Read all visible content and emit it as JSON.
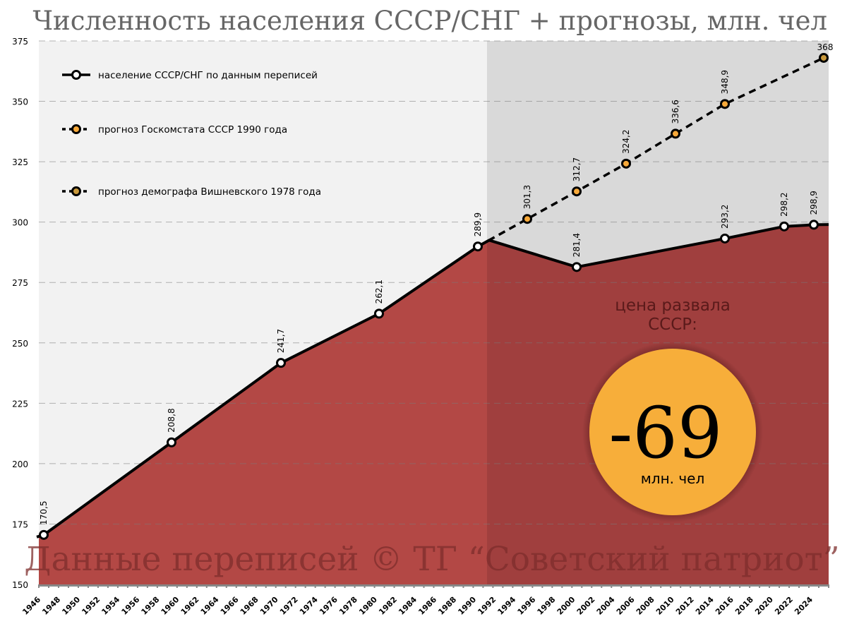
{
  "chart_data": {
    "type": "line",
    "title": "Численность населения СССР/СНГ + прогнозы, млн. чел",
    "xlabel": "",
    "ylabel": "",
    "ylim": [
      150,
      375
    ],
    "yticks": [
      150,
      175,
      200,
      225,
      250,
      275,
      300,
      325,
      350,
      375
    ],
    "xticks": [
      "1946",
      "1948",
      "1950",
      "1952",
      "1954",
      "1956",
      "1958",
      "1960",
      "1962",
      "1964",
      "1966",
      "1968",
      "1970",
      "1972",
      "1974",
      "1976",
      "1978",
      "1980",
      "1982",
      "1984",
      "1986",
      "1988",
      "1990",
      "1992",
      "1994",
      "1996",
      "1998",
      "2000",
      "2002",
      "2004",
      "2006",
      "2008",
      "2010",
      "2012",
      "2014",
      "2016",
      "2018",
      "2020",
      "2022",
      "2024"
    ],
    "grid": true,
    "legend_position": "top-left",
    "series": [
      {
        "name": "население СССР/СНГ по данным переписей",
        "style": "solid",
        "marker_color": "#ffffff",
        "points": [
          {
            "year": 1946,
            "value": 170.5,
            "label": "170,5"
          },
          {
            "year": 1959,
            "value": 208.8,
            "label": "208,8"
          },
          {
            "year": 1970,
            "value": 241.7,
            "label": "241,7"
          },
          {
            "year": 1979,
            "value": 262.1,
            "label": "262,1"
          },
          {
            "year": 1989,
            "value": 289.9,
            "label": "289,9"
          },
          {
            "year": 2000,
            "value": 281.4,
            "label": "281,4"
          },
          {
            "year": 2015,
            "value": 293.2,
            "label": "293,2"
          },
          {
            "year": 2021,
            "value": 298.2,
            "label": "298,2"
          },
          {
            "year": 2024,
            "value": 298.9,
            "label": "298,9"
          }
        ]
      },
      {
        "name": "прогноз Госкомстата СССР 1990 года",
        "style": "dashed",
        "marker_color": "#f7a93a",
        "points": [
          {
            "year": 1995,
            "value": 301.3,
            "label": "301,3"
          },
          {
            "year": 2000,
            "value": 312.7,
            "label": "312,7"
          },
          {
            "year": 2005,
            "value": 324.2,
            "label": "324,2"
          },
          {
            "year": 2010,
            "value": 336.6,
            "label": "336,6"
          },
          {
            "year": 2015,
            "value": 348.9,
            "label": "348,9"
          }
        ]
      },
      {
        "name": "прогноз демографа Вишневского 1978 года",
        "style": "dashed",
        "marker_color": "#c9993c",
        "points": [
          {
            "year": 2025,
            "value": 368,
            "label": "368"
          }
        ]
      }
    ],
    "annotations": {
      "callout_heading": "цена развала СССР:",
      "callout_value": "-69",
      "callout_unit": "млн. чел",
      "watermark": "Данные переписей © ТГ “Советский патриот”"
    }
  },
  "title": "Численность населения СССР/СНГ + прогнозы, млн. чел",
  "legend": [
    {
      "label": "население СССР/СНГ по данным переписей"
    },
    {
      "label": "прогноз Госкомстата СССР 1990 года"
    },
    {
      "label": "прогноз демографа Вишневского 1978 года"
    }
  ],
  "callout": {
    "heading_line1": "цена развала",
    "heading_line2": "СССР:",
    "value": "-69",
    "unit": "млн. чел"
  },
  "watermark": "Данные переписей © ТГ “Советский патриот”",
  "colors": {
    "area_ussr": "#b34845",
    "area_post": "#a03f3e",
    "bg_left": "#f2f2f2",
    "bg_right": "#d9d9d9",
    "forecast_goskomstat": "#f7a93a",
    "forecast_vishnevsky": "#c9993c",
    "callout_circle": "#f7ae3a"
  }
}
